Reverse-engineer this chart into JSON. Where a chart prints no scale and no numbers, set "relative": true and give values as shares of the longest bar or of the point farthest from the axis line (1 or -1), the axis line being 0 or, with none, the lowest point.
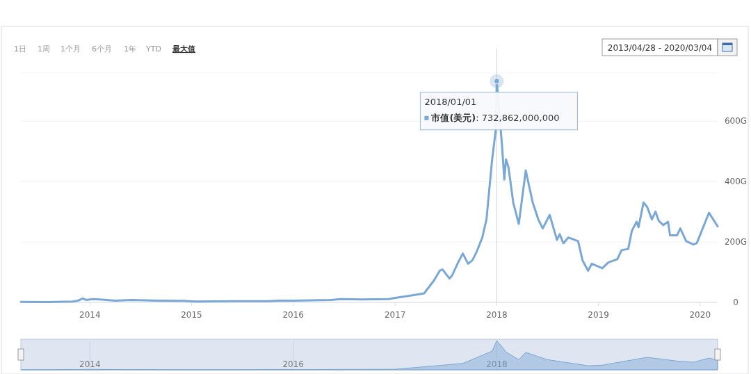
{
  "chart_data": [
    {
      "type": "line",
      "annotations": [
        "1日",
        "1周",
        "1个月",
        "6个月",
        "1年",
        "YTD",
        "最大值",
        "2013/04/28 - 2020/03/04",
        {
          "text": "2018/01/01",
          "x": "2018-01-01",
          "y": 732.862
        },
        "市值(美元): 732,862,000,000"
      ],
      "series": [
        {
          "color": "#7aa7d4",
          "x": [
            "2013-04-28",
            "2013-08-01",
            "2013-11-01",
            "2013-11-20",
            "2013-12-05",
            "2013-12-20",
            "2014-01-10",
            "2014-02-15",
            "2014-04-01",
            "2014-06-01",
            "2014-09-01",
            "2014-12-01",
            "2015-01-15",
            "2015-06-01",
            "2015-10-01",
            "2015-11-15",
            "2016-01-01",
            "2016-05-15",
            "2016-06-20",
            "2016-09-01",
            "2016-12-10",
            "2017-01-01",
            "2017-03-01",
            "2017-04-15",
            "2017-05-20",
            "2017-06-10",
            "2017-06-20",
            "2017-07-15",
            "2017-07-25",
            "2017-08-15",
            "2017-09-01",
            "2017-09-20",
            "2017-10-05",
            "2017-10-20",
            "2017-11-10",
            "2017-11-25",
            "2017-12-15",
            "2017-12-28",
            "2018-01-01",
            "2018-01-20",
            "2018-01-28",
            "2018-02-03",
            "2018-02-12",
            "2018-03-01",
            "2018-03-21",
            "2018-04-15",
            "2018-05-10",
            "2018-05-30",
            "2018-06-15",
            "2018-07-10",
            "2018-08-05",
            "2018-08-15",
            "2018-08-28",
            "2018-09-15",
            "2018-10-20",
            "2018-11-05",
            "2018-11-25",
            "2018-12-08",
            "2019-01-15",
            "2019-02-05",
            "2019-03-10",
            "2019-03-25",
            "2019-04-18",
            "2019-05-01",
            "2019-05-18",
            "2019-05-25",
            "2019-06-12",
            "2019-06-25",
            "2019-07-12",
            "2019-07-25",
            "2019-08-05",
            "2019-08-22",
            "2019-09-08",
            "2019-09-15",
            "2019-10-10",
            "2019-10-22",
            "2019-11-12",
            "2019-12-08",
            "2019-12-20",
            "2020-01-07",
            "2020-02-02",
            "2020-03-04"
          ],
          "values": [
            2,
            1,
            3,
            6,
            13,
            8,
            11,
            9,
            6,
            8,
            6,
            5,
            3,
            4,
            4,
            6,
            6,
            8,
            11,
            10,
            11,
            15,
            23,
            30,
            72,
            105,
            109,
            79,
            90,
            132,
            162,
            128,
            139,
            166,
            215,
            275,
            471,
            569,
            732.862,
            516,
            407,
            474,
            448,
            331,
            260,
            437,
            331,
            275,
            245,
            290,
            207,
            226,
            196,
            215,
            203,
            139,
            105,
            128,
            113,
            132,
            143,
            173,
            177,
            237,
            267,
            249,
            331,
            316,
            275,
            301,
            271,
            256,
            267,
            222,
            222,
            245,
            203,
            192,
            196,
            237,
            297,
            252
          ]
        }
      ],
      "xlim": [
        "2013-04-28",
        "2020-03-04"
      ],
      "xticks": [
        {
          "value": "2014",
          "label": "2014"
        },
        {
          "value": "2015",
          "label": "2015"
        },
        {
          "value": "2016",
          "label": "2016"
        },
        {
          "value": "2017",
          "label": "2017"
        },
        {
          "value": "2018",
          "label": "2018"
        },
        {
          "value": "2019",
          "label": "2019"
        },
        {
          "value": "2020",
          "label": "2020"
        }
      ],
      "ylim": [
        0,
        760
      ],
      "yticks": [
        0,
        {
          "value": 200,
          "label": "200G"
        },
        {
          "value": 400,
          "label": "400G"
        },
        {
          "value": 600,
          "label": "600G"
        }
      ],
      "grid": "y",
      "ref_lines": [
        {
          "axis": "x",
          "value": "2018-01-01",
          "color": "#c8d4e3"
        }
      ]
    },
    {
      "type": "area",
      "relative": true,
      "tick_labels": "x",
      "grid": "x",
      "series": [
        {
          "color": "#7aa7d4",
          "x": [
            "2013-04-28",
            "2014-01-01",
            "2015-01-01",
            "2016-01-01",
            "2017-01-01",
            "2017-06-10",
            "2017-09-01",
            "2017-12-15",
            "2018-01-01",
            "2018-02-05",
            "2018-03-21",
            "2018-04-15",
            "2018-07-01",
            "2018-11-25",
            "2019-01-15",
            "2019-06-25",
            "2019-10-10",
            "2019-12-08",
            "2020-02-02",
            "2020-03-04"
          ],
          "values": [
            0,
            0.015,
            0.005,
            0.01,
            0.02,
            0.15,
            0.22,
            0.64,
            1,
            0.6,
            0.35,
            0.6,
            0.35,
            0.14,
            0.16,
            0.43,
            0.3,
            0.26,
            0.4,
            0.34
          ]
        }
      ],
      "xlim": [
        "2013-04-28",
        "2020-03-04"
      ],
      "xticks": [
        {
          "value": "2014",
          "label": "2014"
        },
        {
          "value": "2016",
          "label": "2016"
        },
        {
          "value": "2018",
          "label": "2018"
        }
      ]
    }
  ]
}
